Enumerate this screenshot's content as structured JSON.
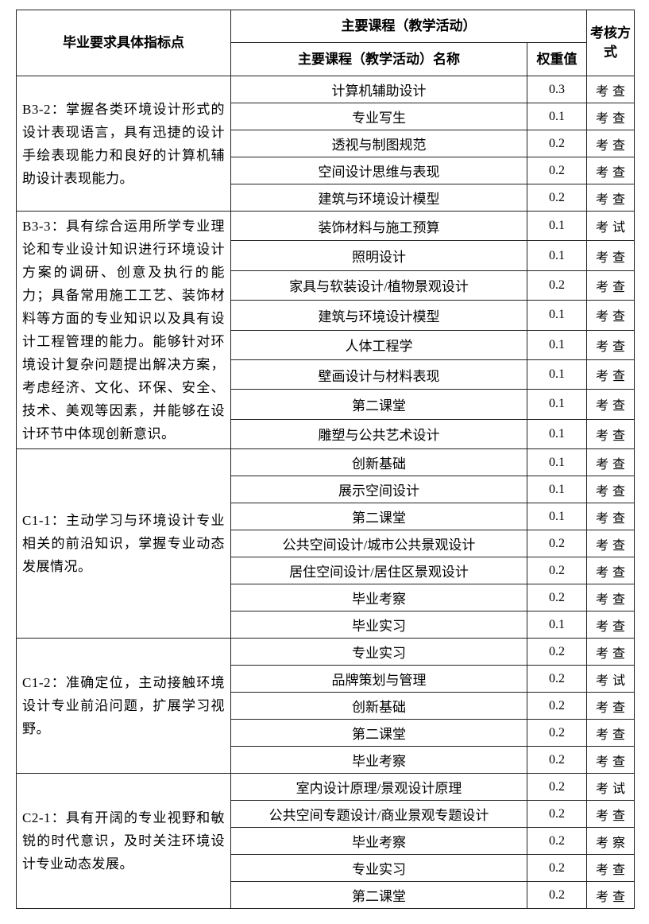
{
  "table": {
    "header": {
      "col_indicator": "毕业要求具体指标点",
      "col_courses_group": "主要课程（教学活动）",
      "col_course_name": "主要课程（教学活动）名称",
      "col_weight": "权重值",
      "col_assessment": "考核方式"
    },
    "groups": [
      {
        "indicator": "B3-2：掌握各类环境设计形式的设计表现语言，具有迅捷的设计手绘表现能力和良好的计算机辅助设计表现能力。",
        "courses": [
          {
            "name": "计算机辅助设计",
            "weight": "0.3",
            "assessment": "考查"
          },
          {
            "name": "专业写生",
            "weight": "0.1",
            "assessment": "考查"
          },
          {
            "name": "透视与制图规范",
            "weight": "0.2",
            "assessment": "考查"
          },
          {
            "name": "空间设计思维与表现",
            "weight": "0.2",
            "assessment": "考查"
          },
          {
            "name": "建筑与环境设计模型",
            "weight": "0.2",
            "assessment": "考查"
          }
        ]
      },
      {
        "indicator": "B3-3：具有综合运用所学专业理论和专业设计知识进行环境设计方案的调研、创意及执行的能力；具备常用施工工艺、装饰材料等方面的专业知识以及具有设计工程管理的能力。能够针对环境设计复杂问题提出解决方案，考虑经济、文化、环保、安全、技术、美观等因素，并能够在设计环节中体现创新意识。",
        "courses": [
          {
            "name": "装饰材料与施工预算",
            "weight": "0.1",
            "assessment": "考试"
          },
          {
            "name": "照明设计",
            "weight": "0.1",
            "assessment": "考查"
          },
          {
            "name": "家具与软装设计/植物景观设计",
            "weight": "0.2",
            "assessment": "考查"
          },
          {
            "name": "建筑与环境设计模型",
            "weight": "0.1",
            "assessment": "考查"
          },
          {
            "name": "人体工程学",
            "weight": "0.1",
            "assessment": "考查"
          },
          {
            "name": "壁画设计与材料表现",
            "weight": "0.1",
            "assessment": "考查"
          },
          {
            "name": "第二课堂",
            "weight": "0.1",
            "assessment": "考查"
          },
          {
            "name": "雕塑与公共艺术设计",
            "weight": "0.1",
            "assessment": "考查"
          }
        ]
      },
      {
        "indicator": "C1-1：主动学习与环境设计专业相关的前沿知识，掌握专业动态发展情况。",
        "courses": [
          {
            "name": "创新基础",
            "weight": "0.1",
            "assessment": "考查"
          },
          {
            "name": "展示空间设计",
            "weight": "0.1",
            "assessment": "考查"
          },
          {
            "name": "第二课堂",
            "weight": "0.1",
            "assessment": "考查"
          },
          {
            "name": "公共空间设计/城市公共景观设计",
            "weight": "0.2",
            "assessment": "考查"
          },
          {
            "name": "居住空间设计/居住区景观设计",
            "weight": "0.2",
            "assessment": "考查"
          },
          {
            "name": "毕业考察",
            "weight": "0.2",
            "assessment": "考查"
          },
          {
            "name": "毕业实习",
            "weight": "0.1",
            "assessment": "考查"
          }
        ]
      },
      {
        "indicator": "C1-2：准确定位，主动接触环境设计专业前沿问题，扩展学习视野。",
        "courses": [
          {
            "name": "专业实习",
            "weight": "0.2",
            "assessment": "考查"
          },
          {
            "name": "品牌策划与管理",
            "weight": "0.2",
            "assessment": "考试"
          },
          {
            "name": "创新基础",
            "weight": "0.2",
            "assessment": "考查"
          },
          {
            "name": "第二课堂",
            "weight": "0.2",
            "assessment": "考查"
          },
          {
            "name": "毕业考察",
            "weight": "0.2",
            "assessment": "考查"
          }
        ]
      },
      {
        "indicator": "C2-1：具有开阔的专业视野和敏锐的时代意识，及时关注环境设计专业动态发展。",
        "courses": [
          {
            "name": "室内设计原理/景观设计原理",
            "weight": "0.2",
            "assessment": "考试"
          },
          {
            "name": "公共空间专题设计/商业景观专题设计",
            "weight": "0.2",
            "assessment": "考查"
          },
          {
            "name": "毕业考察",
            "weight": "0.2",
            "assessment": "考察"
          },
          {
            "name": "专业实习",
            "weight": "0.2",
            "assessment": "考查"
          },
          {
            "name": "第二课堂",
            "weight": "0.2",
            "assessment": "考查"
          }
        ]
      }
    ]
  }
}
